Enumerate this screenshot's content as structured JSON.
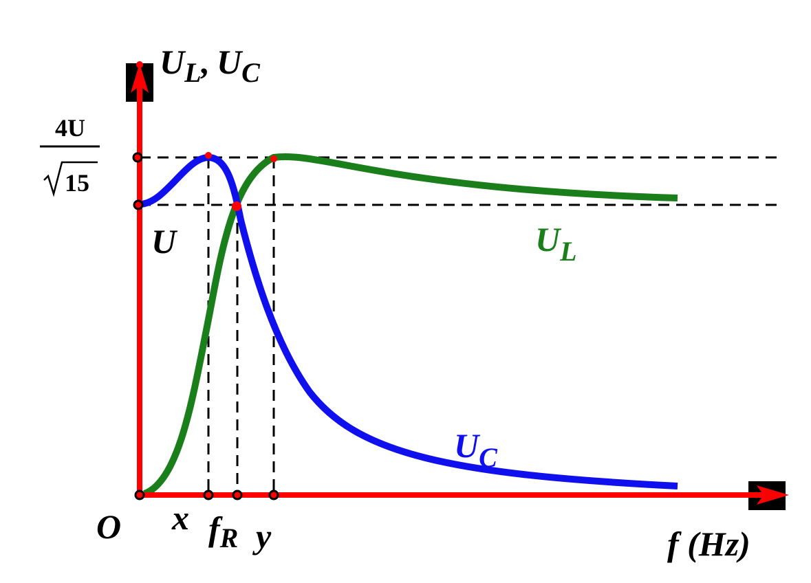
{
  "y_axis": {
    "label": "U",
    "sub": "L",
    "separator": ",",
    "label2": "U",
    "sub2": "C"
  },
  "levels": {
    "peak": {
      "numerator": "4U",
      "denominator": "15"
    },
    "base": "U"
  },
  "curves": [
    {
      "label": "U",
      "sub": "L"
    },
    {
      "label": "U",
      "sub": "C"
    }
  ],
  "x_axis": {
    "origin": "O",
    "marks": [
      {
        "label": "x"
      },
      {
        "label": "f",
        "sub": "R"
      },
      {
        "label": "y"
      }
    ],
    "label": "f (Hz)"
  }
}
